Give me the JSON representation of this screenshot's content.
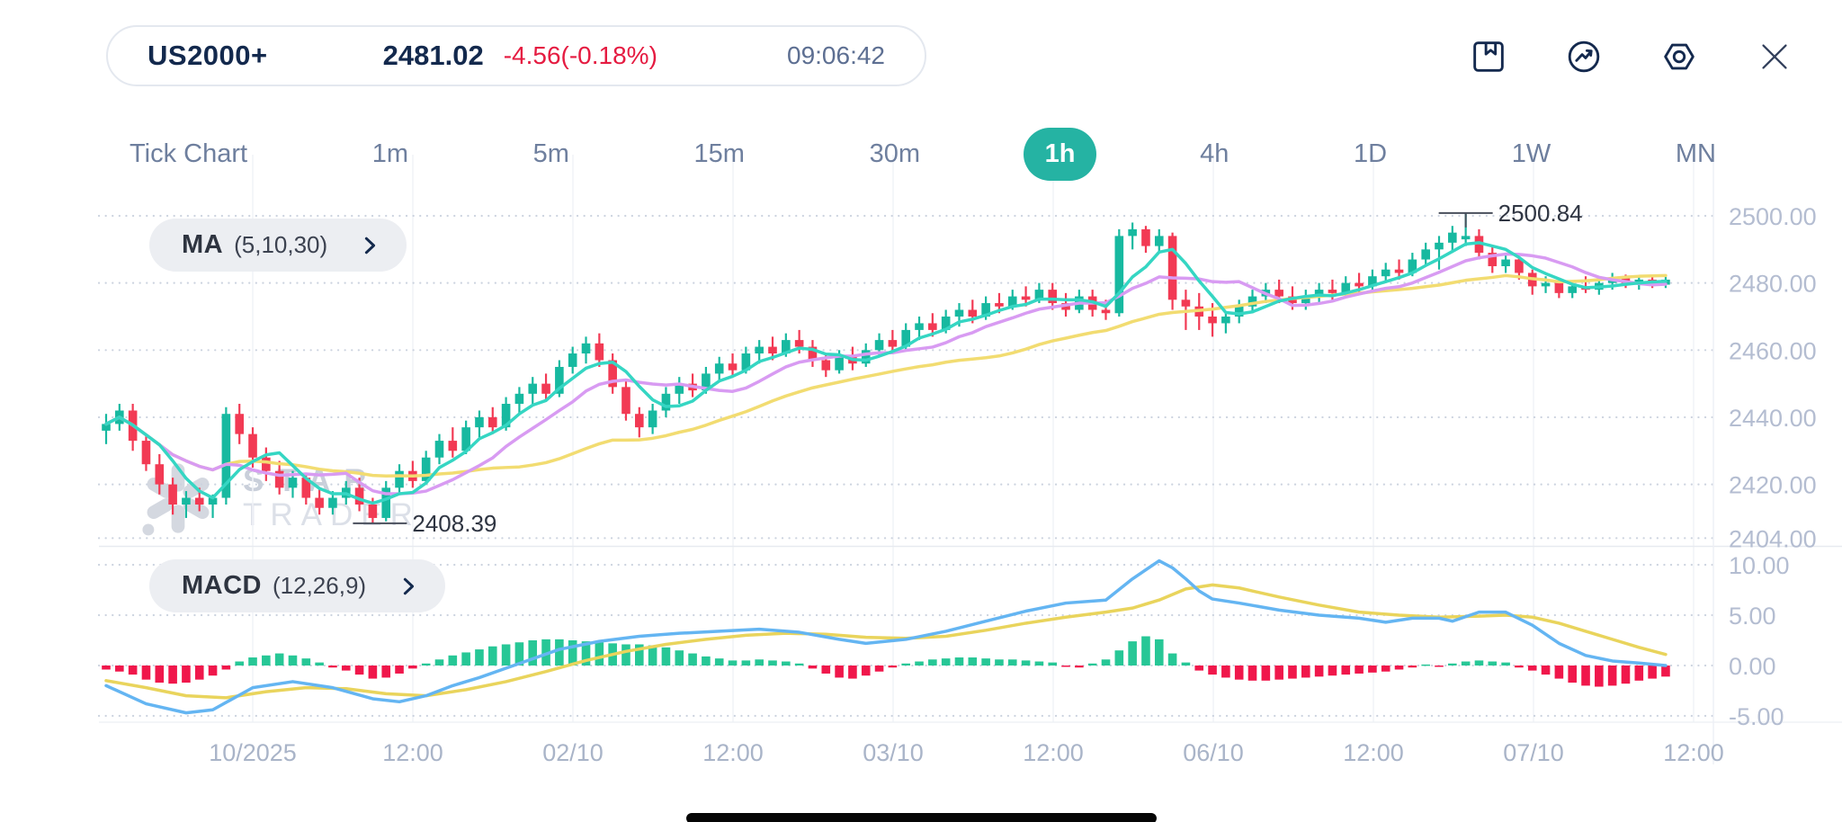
{
  "header": {
    "symbol": "US2000+",
    "price": "2481.02",
    "change": "-4.56(-0.18%)",
    "time": "09:06:42"
  },
  "toolbar": {
    "icons": [
      "bookmark-icon",
      "trend-circle-icon",
      "settings-hex-icon",
      "close-icon"
    ]
  },
  "timeframes": {
    "items": [
      "Tick Chart",
      "1m",
      "5m",
      "15m",
      "30m",
      "1h",
      "4h",
      "1D",
      "1W",
      "MN"
    ],
    "active": "1h"
  },
  "indicator_buttons": {
    "ma": {
      "label": "MA",
      "params": "(5,10,30)"
    },
    "macd": {
      "label": "MACD",
      "params": "(12,26,9)"
    }
  },
  "watermark": {
    "line1": "STAR",
    "line2": "TRADER"
  },
  "chart_data": {
    "type": "candlestick",
    "interval": "1h",
    "price_axis_labels": [
      "2500.00",
      "2480.00",
      "2460.00",
      "2440.00",
      "2420.00",
      "2404.00"
    ],
    "macd_axis_labels": [
      "10.00",
      "5.00",
      "0.00",
      "-5.00"
    ],
    "time_axis_labels": [
      "10/2025",
      "12:00",
      "02/10",
      "12:00",
      "03/10",
      "12:00",
      "06/10",
      "12:00",
      "07/10",
      "12:00"
    ],
    "annotations": {
      "high": {
        "value": "2500.84",
        "candle_index": 102
      },
      "low": {
        "value": "2408.39",
        "candle_index": 20
      }
    },
    "ma_periods": [
      5,
      10,
      30
    ],
    "candles": [
      [
        2436,
        2441,
        2432,
        2438
      ],
      [
        2438,
        2444,
        2436,
        2442
      ],
      [
        2442,
        2444,
        2430,
        2433
      ],
      [
        2433,
        2435,
        2424,
        2426
      ],
      [
        2426,
        2429,
        2417,
        2420
      ],
      [
        2420,
        2422,
        2411,
        2414
      ],
      [
        2414,
        2418,
        2410,
        2416
      ],
      [
        2416,
        2419,
        2412,
        2414
      ],
      [
        2414,
        2417,
        2410,
        2416
      ],
      [
        2416,
        2443,
        2414,
        2441
      ],
      [
        2441,
        2444,
        2432,
        2435
      ],
      [
        2435,
        2437,
        2425,
        2428
      ],
      [
        2428,
        2431,
        2421,
        2424
      ],
      [
        2424,
        2427,
        2417,
        2419
      ],
      [
        2419,
        2424,
        2416,
        2422
      ],
      [
        2422,
        2423,
        2414,
        2416
      ],
      [
        2416,
        2419,
        2411,
        2413
      ],
      [
        2413,
        2418,
        2411,
        2416
      ],
      [
        2416,
        2421,
        2414,
        2419
      ],
      [
        2419,
        2422,
        2412,
        2414
      ],
      [
        2414,
        2416,
        2408.4,
        2410
      ],
      [
        2410,
        2421,
        2409,
        2419
      ],
      [
        2419,
        2426,
        2417,
        2424
      ],
      [
        2424,
        2427,
        2419,
        2421
      ],
      [
        2421,
        2430,
        2420,
        2428
      ],
      [
        2428,
        2435,
        2426,
        2433
      ],
      [
        2433,
        2437,
        2428,
        2430
      ],
      [
        2430,
        2439,
        2429,
        2437
      ],
      [
        2437,
        2442,
        2434,
        2440
      ],
      [
        2440,
        2443,
        2435,
        2437
      ],
      [
        2437,
        2446,
        2436,
        2444
      ],
      [
        2444,
        2449,
        2441,
        2447
      ],
      [
        2447,
        2452,
        2444,
        2450
      ],
      [
        2450,
        2453,
        2445,
        2447
      ],
      [
        2447,
        2457,
        2446,
        2455
      ],
      [
        2455,
        2461,
        2453,
        2459
      ],
      [
        2459,
        2464,
        2456,
        2462
      ],
      [
        2462,
        2465,
        2455,
        2457
      ],
      [
        2457,
        2459,
        2447,
        2449
      ],
      [
        2449,
        2451,
        2439,
        2441
      ],
      [
        2441,
        2443,
        2434,
        2437
      ],
      [
        2437,
        2444,
        2435,
        2442
      ],
      [
        2442,
        2449,
        2440,
        2447
      ],
      [
        2447,
        2452,
        2444,
        2450
      ],
      [
        2450,
        2453,
        2446,
        2448
      ],
      [
        2448,
        2455,
        2447,
        2453
      ],
      [
        2453,
        2458,
        2451,
        2456
      ],
      [
        2456,
        2459,
        2452,
        2454
      ],
      [
        2454,
        2461,
        2453,
        2459
      ],
      [
        2459,
        2463,
        2456,
        2461
      ],
      [
        2461,
        2464,
        2457,
        2459
      ],
      [
        2459,
        2465,
        2458,
        2463
      ],
      [
        2463,
        2466,
        2459,
        2461
      ],
      [
        2461,
        2463,
        2455,
        2457
      ],
      [
        2457,
        2459,
        2452,
        2454
      ],
      [
        2454,
        2460,
        2453,
        2458
      ],
      [
        2458,
        2461,
        2454,
        2456
      ],
      [
        2456,
        2462,
        2455,
        2460
      ],
      [
        2460,
        2465,
        2458,
        2463
      ],
      [
        2463,
        2466,
        2459,
        2461
      ],
      [
        2461,
        2468,
        2460,
        2466
      ],
      [
        2466,
        2470,
        2463,
        2468
      ],
      [
        2468,
        2471,
        2464,
        2466
      ],
      [
        2466,
        2472,
        2465,
        2470
      ],
      [
        2470,
        2474,
        2467,
        2472
      ],
      [
        2472,
        2475,
        2468,
        2470
      ],
      [
        2470,
        2476,
        2469,
        2474
      ],
      [
        2474,
        2477,
        2471,
        2473
      ],
      [
        2473,
        2478,
        2472,
        2476
      ],
      [
        2476,
        2479,
        2473,
        2475
      ],
      [
        2475,
        2480,
        2474,
        2478
      ],
      [
        2478,
        2480,
        2472,
        2474
      ],
      [
        2474,
        2477,
        2470,
        2472
      ],
      [
        2472,
        2478,
        2471,
        2476
      ],
      [
        2476,
        2478,
        2470,
        2472
      ],
      [
        2472,
        2475,
        2469,
        2471
      ],
      [
        2471,
        2496,
        2470,
        2494
      ],
      [
        2494,
        2498,
        2490,
        2496
      ],
      [
        2496,
        2497,
        2489,
        2491
      ],
      [
        2491,
        2496,
        2489,
        2494
      ],
      [
        2494,
        2495,
        2472,
        2475
      ],
      [
        2475,
        2478,
        2466,
        2473
      ],
      [
        2473,
        2477,
        2466,
        2470
      ],
      [
        2470,
        2474,
        2464,
        2468
      ],
      [
        2468,
        2471,
        2465,
        2470
      ],
      [
        2470,
        2475,
        2468,
        2473
      ],
      [
        2473,
        2478,
        2471,
        2476
      ],
      [
        2476,
        2480,
        2474,
        2478
      ],
      [
        2478,
        2481,
        2474,
        2476
      ],
      [
        2476,
        2479,
        2472,
        2474
      ],
      [
        2474,
        2478,
        2472,
        2476
      ],
      [
        2476,
        2480,
        2474,
        2478
      ],
      [
        2478,
        2481,
        2475,
        2477
      ],
      [
        2477,
        2482,
        2476,
        2480
      ],
      [
        2480,
        2483,
        2477,
        2479
      ],
      [
        2479,
        2484,
        2478,
        2482
      ],
      [
        2482,
        2486,
        2480,
        2484
      ],
      [
        2484,
        2487,
        2481,
        2483
      ],
      [
        2483,
        2489,
        2482,
        2487
      ],
      [
        2487,
        2492,
        2485,
        2490
      ],
      [
        2490,
        2494,
        2484,
        2492
      ],
      [
        2492,
        2497,
        2489,
        2495
      ],
      [
        2493,
        2500.84,
        2491,
        2494
      ],
      [
        2494,
        2496,
        2487,
        2489
      ],
      [
        2489,
        2491,
        2483,
        2485
      ],
      [
        2485,
        2489,
        2483,
        2487
      ],
      [
        2487,
        2488,
        2481,
        2483
      ],
      [
        2483,
        2484,
        2476.5,
        2479
      ],
      [
        2479,
        2482,
        2477,
        2480
      ],
      [
        2480,
        2481,
        2475.5,
        2477
      ],
      [
        2477,
        2480,
        2475.5,
        2479
      ],
      [
        2479,
        2482,
        2477,
        2478
      ],
      [
        2478,
        2481.5,
        2476.5,
        2480
      ],
      [
        2480,
        2483,
        2478,
        2481.5
      ],
      [
        2481.5,
        2482.5,
        2478.5,
        2479.5
      ],
      [
        2479.5,
        2482,
        2478,
        2481
      ],
      [
        2481,
        2482.5,
        2478.5,
        2479.5
      ],
      [
        2479.5,
        2482.5,
        2478.5,
        2481
      ]
    ],
    "macd": {
      "histogram": [
        -0.4,
        -0.6,
        -0.9,
        -1.4,
        -1.7,
        -1.8,
        -1.7,
        -1.4,
        -1.0,
        -0.4,
        0.4,
        0.8,
        1.0,
        1.2,
        1.0,
        0.7,
        0.3,
        -0.2,
        -0.5,
        -0.9,
        -1.3,
        -1.2,
        -0.8,
        -0.3,
        0.2,
        0.6,
        1.0,
        1.3,
        1.6,
        1.9,
        2.1,
        2.3,
        2.5,
        2.6,
        2.6,
        2.5,
        2.4,
        2.3,
        2.2,
        2.1,
        2.1,
        2.0,
        1.8,
        1.5,
        1.2,
        0.9,
        0.7,
        0.5,
        0.5,
        0.6,
        0.5,
        0.4,
        0.2,
        -0.3,
        -0.8,
        -1.2,
        -1.3,
        -1.0,
        -0.6,
        -0.2,
        0.2,
        0.4,
        0.6,
        0.7,
        0.8,
        0.8,
        0.7,
        0.6,
        0.6,
        0.5,
        0.4,
        0.3,
        -0.1,
        -0.2,
        0.2,
        0.6,
        1.5,
        2.4,
        2.9,
        2.6,
        1.2,
        0.3,
        -0.5,
        -0.9,
        -1.2,
        -1.4,
        -1.5,
        -1.5,
        -1.4,
        -1.3,
        -1.2,
        -1.1,
        -1.0,
        -0.9,
        -0.8,
        -0.7,
        -0.6,
        -0.4,
        -0.2,
        0.1,
        -0.1,
        0.2,
        0.4,
        0.5,
        0.4,
        0.3,
        -0.2,
        -0.5,
        -0.9,
        -1.3,
        -1.7,
        -2.0,
        -2.1,
        -2.0,
        -1.8,
        -1.5,
        -1.3,
        -1.1
      ],
      "macd_line_keypoints": [
        [
          0,
          -2.0
        ],
        [
          3,
          -3.8
        ],
        [
          6,
          -4.7
        ],
        [
          8,
          -4.4
        ],
        [
          11,
          -2.2
        ],
        [
          14,
          -1.6
        ],
        [
          17,
          -2.2
        ],
        [
          20,
          -3.3
        ],
        [
          22,
          -3.6
        ],
        [
          24,
          -3.0
        ],
        [
          26,
          -2.0
        ],
        [
          28,
          -1.2
        ],
        [
          31,
          0.2
        ],
        [
          34,
          1.6
        ],
        [
          37,
          2.4
        ],
        [
          40,
          2.9
        ],
        [
          43,
          3.2
        ],
        [
          46,
          3.4
        ],
        [
          49,
          3.6
        ],
        [
          52,
          3.3
        ],
        [
          55,
          2.6
        ],
        [
          57,
          2.2
        ],
        [
          60,
          2.6
        ],
        [
          63,
          3.4
        ],
        [
          66,
          4.4
        ],
        [
          69,
          5.4
        ],
        [
          72,
          6.2
        ],
        [
          75,
          6.5
        ],
        [
          77,
          8.6
        ],
        [
          79,
          10.4
        ],
        [
          80,
          9.7
        ],
        [
          81,
          8.6
        ],
        [
          82,
          7.4
        ],
        [
          83,
          6.6
        ],
        [
          85,
          6.2
        ],
        [
          88,
          5.5
        ],
        [
          91,
          5.0
        ],
        [
          94,
          4.7
        ],
        [
          96,
          4.3
        ],
        [
          98,
          4.7
        ],
        [
          100,
          4.7
        ],
        [
          101,
          4.4
        ],
        [
          103,
          5.3
        ],
        [
          105,
          5.3
        ],
        [
          107,
          4.0
        ],
        [
          109,
          2.2
        ],
        [
          111,
          1.0
        ],
        [
          113,
          0.45
        ],
        [
          115,
          0.25
        ],
        [
          117,
          0.0
        ]
      ],
      "signal_line_keypoints": [
        [
          0,
          -1.5
        ],
        [
          3,
          -2.2
        ],
        [
          6,
          -3.0
        ],
        [
          9,
          -3.2
        ],
        [
          12,
          -2.6
        ],
        [
          15,
          -2.2
        ],
        [
          18,
          -2.3
        ],
        [
          21,
          -2.8
        ],
        [
          24,
          -3.0
        ],
        [
          27,
          -2.4
        ],
        [
          30,
          -1.6
        ],
        [
          33,
          -0.6
        ],
        [
          36,
          0.5
        ],
        [
          39,
          1.4
        ],
        [
          42,
          2.1
        ],
        [
          45,
          2.6
        ],
        [
          48,
          3.0
        ],
        [
          51,
          3.2
        ],
        [
          54,
          3.1
        ],
        [
          57,
          2.8
        ],
        [
          60,
          2.7
        ],
        [
          63,
          2.9
        ],
        [
          66,
          3.5
        ],
        [
          69,
          4.2
        ],
        [
          72,
          4.8
        ],
        [
          75,
          5.3
        ],
        [
          77,
          5.7
        ],
        [
          79,
          6.5
        ],
        [
          81,
          7.6
        ],
        [
          83,
          8.0
        ],
        [
          85,
          7.7
        ],
        [
          88,
          6.8
        ],
        [
          91,
          6.0
        ],
        [
          94,
          5.3
        ],
        [
          97,
          5.0
        ],
        [
          100,
          4.8
        ],
        [
          103,
          4.9
        ],
        [
          105,
          5.0
        ],
        [
          107,
          4.8
        ],
        [
          109,
          4.2
        ],
        [
          111,
          3.4
        ],
        [
          113,
          2.6
        ],
        [
          115,
          1.8
        ],
        [
          117,
          1.1
        ]
      ]
    },
    "colors": {
      "up": "#17b9a0",
      "down": "#f23a54",
      "ma5": "#35d6c3",
      "ma10": "#d89bf2",
      "ma30": "#f2dc71",
      "macd_line": "#64b5f2",
      "signal_line": "#e9d45c",
      "hist_up": "#27c796",
      "hist_down": "#f0174b",
      "accent": "#25b3a3",
      "negative": "#e51b41",
      "navy": "#13294d",
      "axis_text": "#b4bdd1",
      "grid": "#ccd3df"
    }
  }
}
